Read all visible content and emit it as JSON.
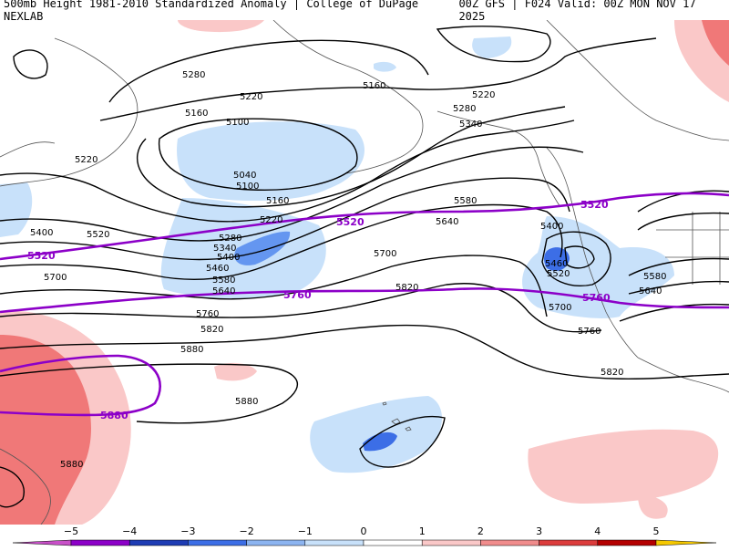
{
  "header": {
    "left_title": "500mb Height 1981-2010 Standardized Anomaly | College of DuPage NEXLAB",
    "right_title": "00Z GFS | F024 Valid: 00Z MON NOV 17 2025"
  },
  "colors": {
    "ocean": "#ffffff",
    "contour": "#000000",
    "coast": "#555555",
    "climo": "#8c00c8",
    "neg1": "#c8e1fa",
    "neg2": "#6496f0",
    "neg3": "#1e50c8",
    "pos1": "#fac8c8",
    "pos2": "#f07878",
    "pos3": "#c81e1e"
  },
  "contour_labels": [
    "5280",
    "5160",
    "5220",
    "5220",
    "5160",
    "5100",
    "5280",
    "5340",
    "5040",
    "5100",
    "5220",
    "5160",
    "5400",
    "5520",
    "5220",
    "5280",
    "5340",
    "5400",
    "5460",
    "5580",
    "5640",
    "5700",
    "5760",
    "5820",
    "5880",
    "5880",
    "5880",
    "5580",
    "5640",
    "5700",
    "5400",
    "5460",
    "5520",
    "5580",
    "5640",
    "5700",
    "5760",
    "5820",
    "5820"
  ],
  "climo_labels": [
    "5520",
    "5520",
    "5520",
    "5760",
    "5760",
    "5880"
  ],
  "colorbar": {
    "ticks": [
      "-5",
      "-4",
      "-3",
      "-2",
      "-1",
      "0",
      "1",
      "2",
      "3",
      "4",
      "5"
    ],
    "colors": [
      "#c850c8",
      "#8c00c8",
      "#1e3cb4",
      "#3c6ee6",
      "#8cb4f0",
      "#c8e1fa",
      "#ffffff",
      "#fac8c8",
      "#f08c8c",
      "#dc3c3c",
      "#b40000",
      "#e68c00",
      "#f5c800"
    ]
  }
}
